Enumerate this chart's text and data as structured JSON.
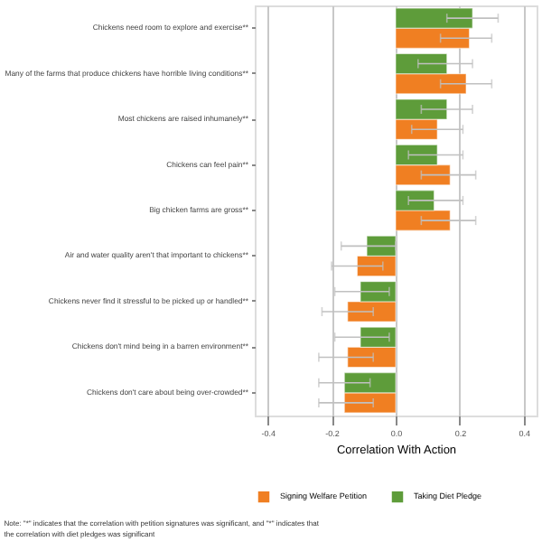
{
  "chart_data": {
    "type": "bar",
    "orientation": "horizontal",
    "xlabel": "Correlation With Action",
    "categories": [
      "Chickens need room to explore and exercise**",
      "Many of the farms that produce chickens have horrible living conditions**",
      "Most chickens are raised inhumanely**",
      "Chickens can feel pain**",
      "Big chicken farms are gross**",
      "Air and water quality aren't that important to chickens**",
      "Chickens never find it stressful to be picked up or handled**",
      "Chickens don't mind being in a barren environment**",
      "Chickens don't care about being over-crowded**"
    ],
    "series": [
      {
        "name": "Signing Welfare Petition",
        "color": "#f07f22",
        "values": [
          0.23,
          0.22,
          0.13,
          0.17,
          0.17,
          -0.12,
          -0.15,
          -0.15,
          -0.16
        ],
        "errors": [
          [
            0.14,
            0.3
          ],
          [
            0.14,
            0.3
          ],
          [
            0.05,
            0.21
          ],
          [
            0.08,
            0.25
          ],
          [
            0.08,
            0.25
          ],
          [
            -0.2,
            -0.04
          ],
          [
            -0.23,
            -0.07
          ],
          [
            -0.24,
            -0.07
          ],
          [
            -0.24,
            -0.07
          ]
        ]
      },
      {
        "name": "Taking Diet Pledge",
        "color": "#5e9c3a",
        "values": [
          0.24,
          0.16,
          0.16,
          0.13,
          0.12,
          -0.09,
          -0.11,
          -0.11,
          -0.16
        ],
        "errors": [
          [
            0.16,
            0.32
          ],
          [
            0.07,
            0.24
          ],
          [
            0.08,
            0.24
          ],
          [
            0.04,
            0.21
          ],
          [
            0.04,
            0.21
          ],
          [
            -0.17,
            0.0
          ],
          [
            -0.19,
            -0.02
          ],
          [
            -0.19,
            -0.02
          ],
          [
            -0.24,
            -0.08
          ]
        ]
      }
    ],
    "xlim": [
      -0.44,
      0.44
    ],
    "xticks": [
      {
        "value": -0.4,
        "label": "-0.4"
      },
      {
        "value": -0.2,
        "label": "-0.2"
      },
      {
        "value": 0,
        "label": "0.0"
      },
      {
        "value": 0.2,
        "label": "0.2"
      },
      {
        "value": 0.4,
        "label": "0.4"
      }
    ],
    "grid": "x",
    "legend": "bottom",
    "annotations": [
      "Note: \"*\" indicates that the correlation with petition signatures was significant, and \"*\" indicates that the correlation with diet pledges was significant"
    ]
  }
}
